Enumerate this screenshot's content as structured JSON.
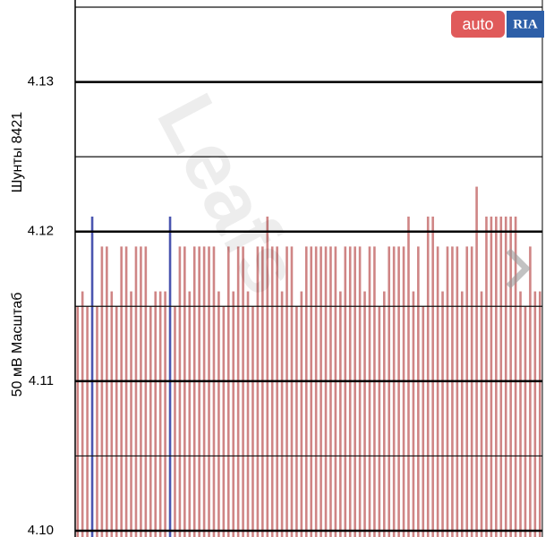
{
  "chart_data": {
    "type": "bar",
    "y_label_left": "50 мВ Масштаб",
    "y_label_right": "Шунты 8421",
    "watermark": "Leafs",
    "logo": {
      "left": "auto",
      "right": "RIA"
    },
    "ylim": [
      4.1,
      4.135
    ],
    "yticks": [
      {
        "value": 4.1,
        "label": "4.10"
      },
      {
        "value": 4.11,
        "label": "4.11"
      },
      {
        "value": 4.12,
        "label": "4.12"
      },
      {
        "value": 4.13,
        "label": "4.13"
      }
    ],
    "minor_yticks": [
      4.105,
      4.115,
      4.125,
      4.135
    ],
    "grid": true,
    "values": [
      4.115,
      4.116,
      4.115,
      4.121,
      4.115,
      4.119,
      4.119,
      4.116,
      4.115,
      4.119,
      4.119,
      4.116,
      4.119,
      4.119,
      4.119,
      4.115,
      4.116,
      4.116,
      4.116,
      4.121,
      4.115,
      4.119,
      4.119,
      4.116,
      4.119,
      4.119,
      4.119,
      4.119,
      4.119,
      4.116,
      4.115,
      4.119,
      4.116,
      4.119,
      4.119,
      4.116,
      4.115,
      4.119,
      4.119,
      4.121,
      4.119,
      4.119,
      4.116,
      4.119,
      4.119,
      4.115,
      4.116,
      4.119,
      4.119,
      4.119,
      4.119,
      4.119,
      4.119,
      4.119,
      4.116,
      4.119,
      4.119,
      4.119,
      4.119,
      4.116,
      4.119,
      4.119,
      4.115,
      4.116,
      4.119,
      4.119,
      4.119,
      4.119,
      4.121,
      4.116,
      4.119,
      4.115,
      4.121,
      4.121,
      4.119,
      4.116,
      4.119,
      4.119,
      4.119,
      4.116,
      4.119,
      4.119,
      4.123,
      4.116,
      4.121,
      4.121,
      4.121,
      4.121,
      4.121,
      4.121,
      4.121,
      4.116,
      4.115,
      4.119,
      4.116,
      4.116
    ],
    "colors": [
      "#cf8585",
      "#cf8585",
      "#cf8585",
      "#4a55b0",
      "#cf8585",
      "#cf8585",
      "#cf8585",
      "#cf8585",
      "#cf8585",
      "#cf8585",
      "#cf8585",
      "#cf8585",
      "#cf8585",
      "#cf8585",
      "#cf8585",
      "#cf8585",
      "#cf8585",
      "#cf8585",
      "#cf8585",
      "#4a55b0",
      "#cf8585",
      "#cf8585",
      "#cf8585",
      "#cf8585",
      "#cf8585",
      "#cf8585",
      "#cf8585",
      "#cf8585",
      "#cf8585",
      "#cf8585",
      "#cf8585",
      "#cf8585",
      "#cf8585",
      "#cf8585",
      "#cf8585",
      "#cf8585",
      "#cf8585",
      "#cf8585",
      "#cf8585",
      "#cf8585",
      "#cf8585",
      "#cf8585",
      "#cf8585",
      "#cf8585",
      "#cf8585",
      "#cf8585",
      "#cf8585",
      "#cf8585",
      "#cf8585",
      "#cf8585",
      "#cf8585",
      "#cf8585",
      "#cf8585",
      "#cf8585",
      "#cf8585",
      "#cf8585",
      "#cf8585",
      "#cf8585",
      "#cf8585",
      "#cf8585",
      "#cf8585",
      "#cf8585",
      "#cf8585",
      "#cf8585",
      "#cf8585",
      "#cf8585",
      "#cf8585",
      "#cf8585",
      "#cf8585",
      "#cf8585",
      "#cf8585",
      "#cf8585",
      "#cf8585",
      "#cf8585",
      "#cf8585",
      "#cf8585",
      "#cf8585",
      "#cf8585",
      "#cf8585",
      "#cf8585",
      "#cf8585",
      "#cf8585",
      "#cf8585",
      "#cf8585",
      "#cf8585",
      "#cf8585",
      "#cf8585",
      "#cf8585",
      "#cf8585",
      "#cf8585",
      "#cf8585",
      "#cf8585",
      "#cf8585",
      "#cf8585",
      "#cf8585",
      "#cf8585"
    ]
  }
}
